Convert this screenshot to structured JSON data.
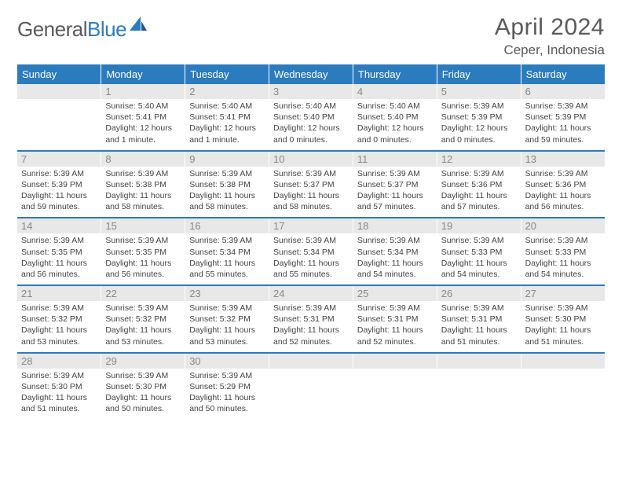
{
  "brand": {
    "word1": "General",
    "word2": "Blue"
  },
  "title": "April 2024",
  "location": "Ceper, Indonesia",
  "colors": {
    "accent": "#2b7bbf",
    "headerText": "#5a5a5a",
    "dayNumBg": "#e8e8e8",
    "dayNumText": "#888",
    "bodyText": "#444"
  },
  "weekdays": [
    "Sunday",
    "Monday",
    "Tuesday",
    "Wednesday",
    "Thursday",
    "Friday",
    "Saturday"
  ],
  "weeks": [
    [
      null,
      {
        "n": "1",
        "sr": "5:40 AM",
        "ss": "5:41 PM",
        "dl": "12 hours and 1 minute."
      },
      {
        "n": "2",
        "sr": "5:40 AM",
        "ss": "5:41 PM",
        "dl": "12 hours and 1 minute."
      },
      {
        "n": "3",
        "sr": "5:40 AM",
        "ss": "5:40 PM",
        "dl": "12 hours and 0 minutes."
      },
      {
        "n": "4",
        "sr": "5:40 AM",
        "ss": "5:40 PM",
        "dl": "12 hours and 0 minutes."
      },
      {
        "n": "5",
        "sr": "5:39 AM",
        "ss": "5:39 PM",
        "dl": "12 hours and 0 minutes."
      },
      {
        "n": "6",
        "sr": "5:39 AM",
        "ss": "5:39 PM",
        "dl": "11 hours and 59 minutes."
      }
    ],
    [
      {
        "n": "7",
        "sr": "5:39 AM",
        "ss": "5:39 PM",
        "dl": "11 hours and 59 minutes."
      },
      {
        "n": "8",
        "sr": "5:39 AM",
        "ss": "5:38 PM",
        "dl": "11 hours and 58 minutes."
      },
      {
        "n": "9",
        "sr": "5:39 AM",
        "ss": "5:38 PM",
        "dl": "11 hours and 58 minutes."
      },
      {
        "n": "10",
        "sr": "5:39 AM",
        "ss": "5:37 PM",
        "dl": "11 hours and 58 minutes."
      },
      {
        "n": "11",
        "sr": "5:39 AM",
        "ss": "5:37 PM",
        "dl": "11 hours and 57 minutes."
      },
      {
        "n": "12",
        "sr": "5:39 AM",
        "ss": "5:36 PM",
        "dl": "11 hours and 57 minutes."
      },
      {
        "n": "13",
        "sr": "5:39 AM",
        "ss": "5:36 PM",
        "dl": "11 hours and 56 minutes."
      }
    ],
    [
      {
        "n": "14",
        "sr": "5:39 AM",
        "ss": "5:35 PM",
        "dl": "11 hours and 56 minutes."
      },
      {
        "n": "15",
        "sr": "5:39 AM",
        "ss": "5:35 PM",
        "dl": "11 hours and 56 minutes."
      },
      {
        "n": "16",
        "sr": "5:39 AM",
        "ss": "5:34 PM",
        "dl": "11 hours and 55 minutes."
      },
      {
        "n": "17",
        "sr": "5:39 AM",
        "ss": "5:34 PM",
        "dl": "11 hours and 55 minutes."
      },
      {
        "n": "18",
        "sr": "5:39 AM",
        "ss": "5:34 PM",
        "dl": "11 hours and 54 minutes."
      },
      {
        "n": "19",
        "sr": "5:39 AM",
        "ss": "5:33 PM",
        "dl": "11 hours and 54 minutes."
      },
      {
        "n": "20",
        "sr": "5:39 AM",
        "ss": "5:33 PM",
        "dl": "11 hours and 54 minutes."
      }
    ],
    [
      {
        "n": "21",
        "sr": "5:39 AM",
        "ss": "5:32 PM",
        "dl": "11 hours and 53 minutes."
      },
      {
        "n": "22",
        "sr": "5:39 AM",
        "ss": "5:32 PM",
        "dl": "11 hours and 53 minutes."
      },
      {
        "n": "23",
        "sr": "5:39 AM",
        "ss": "5:32 PM",
        "dl": "11 hours and 53 minutes."
      },
      {
        "n": "24",
        "sr": "5:39 AM",
        "ss": "5:31 PM",
        "dl": "11 hours and 52 minutes."
      },
      {
        "n": "25",
        "sr": "5:39 AM",
        "ss": "5:31 PM",
        "dl": "11 hours and 52 minutes."
      },
      {
        "n": "26",
        "sr": "5:39 AM",
        "ss": "5:31 PM",
        "dl": "11 hours and 51 minutes."
      },
      {
        "n": "27",
        "sr": "5:39 AM",
        "ss": "5:30 PM",
        "dl": "11 hours and 51 minutes."
      }
    ],
    [
      {
        "n": "28",
        "sr": "5:39 AM",
        "ss": "5:30 PM",
        "dl": "11 hours and 51 minutes."
      },
      {
        "n": "29",
        "sr": "5:39 AM",
        "ss": "5:30 PM",
        "dl": "11 hours and 50 minutes."
      },
      {
        "n": "30",
        "sr": "5:39 AM",
        "ss": "5:29 PM",
        "dl": "11 hours and 50 minutes."
      },
      null,
      null,
      null,
      null
    ]
  ],
  "labels": {
    "sunrise": "Sunrise:",
    "sunset": "Sunset:",
    "daylight": "Daylight:"
  }
}
